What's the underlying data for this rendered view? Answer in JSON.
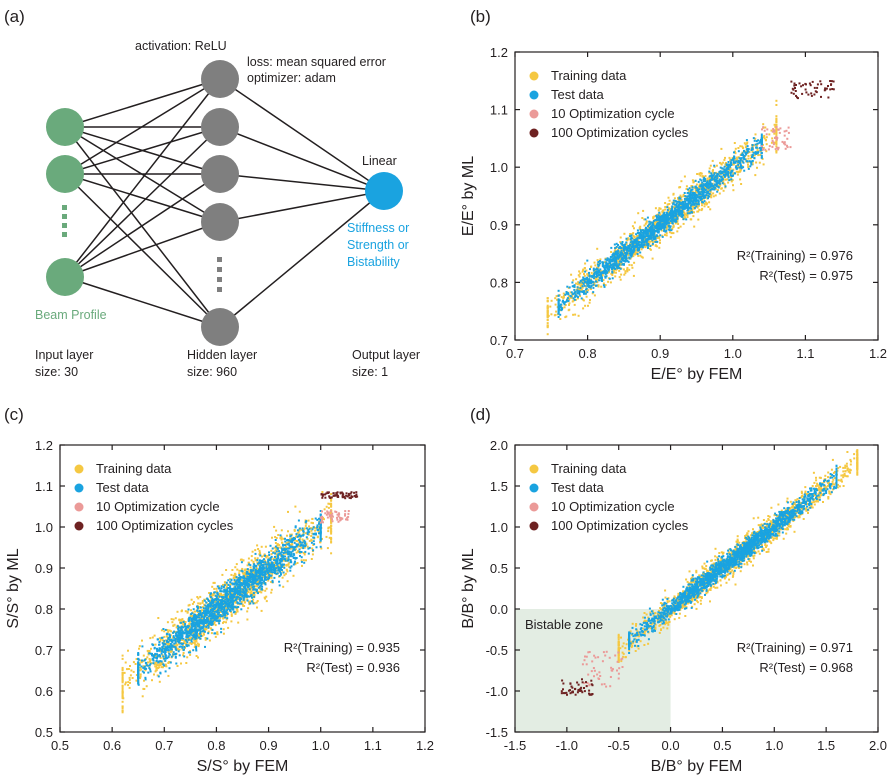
{
  "nn_panel": {
    "label": "(a)",
    "activation": "activation: ReLU",
    "loss": "loss: mean squared error",
    "optimizer": "optimizer: adam",
    "output_activation": "Linear",
    "input_caption": "Beam Profile",
    "output_caption_lines": [
      "Stiffness or",
      "Strength or",
      "Bistability"
    ],
    "input_layer": {
      "name": "Input layer",
      "size": "size: 30"
    },
    "hidden_layer": {
      "name": "Hidden layer",
      "size": "size: 960"
    },
    "output_layer": {
      "name": "Output layer",
      "size": "size: 1"
    },
    "colors": {
      "input": "#6aaa7c",
      "hidden": "#7f7f7f",
      "output": "#1aa3e0",
      "caption_green": "#6aaa7c",
      "caption_blue": "#1aa3e0"
    }
  },
  "legend_entries": [
    "Training data",
    "Test data",
    "10 Optimization cycle",
    "100 Optimization cycles"
  ],
  "series_colors": [
    "#f5c842",
    "#1aa3e0",
    "#eb9a98",
    "#6e2222"
  ],
  "chart_data": [
    {
      "type": "scatter",
      "panel": "(b)",
      "xlabel": "E/E° by FEM",
      "ylabel": "E/E° by ML",
      "xlim": [
        0.7,
        1.2
      ],
      "ylim": [
        0.7,
        1.2
      ],
      "xticks": [
        "0.7",
        "0.8",
        "0.9",
        "1.0",
        "1.1",
        "1.2"
      ],
      "yticks": [
        "0.7",
        "0.8",
        "0.9",
        "1.0",
        "1.1",
        "1.2"
      ],
      "r2_training": "R²(Training) = 0.976",
      "r2_test": "R²(Test) = 0.975",
      "legend": "top-left",
      "series": [
        {
          "name": "Training data",
          "x_range": [
            0.745,
            1.06
          ],
          "spread": 0.016,
          "count": 1400
        },
        {
          "name": "Test data",
          "x_range": [
            0.76,
            1.04
          ],
          "spread": 0.01,
          "count": 1600
        },
        {
          "name": "10 Optimization cycle",
          "x_range": [
            1.04,
            1.08
          ],
          "y_range": [
            1.03,
            1.07
          ],
          "count": 50
        },
        {
          "name": "100 Optimization cycles",
          "x_range": [
            1.08,
            1.14
          ],
          "y_range": [
            1.12,
            1.15
          ],
          "count": 50
        }
      ]
    },
    {
      "type": "scatter",
      "panel": "(c)",
      "xlabel": "S/S° by FEM",
      "ylabel": "S/S° by ML",
      "xlim": [
        0.5,
        1.2
      ],
      "ylim": [
        0.5,
        1.2
      ],
      "xticks": [
        "0.5",
        "0.6",
        "0.7",
        "0.8",
        "0.9",
        "1.0",
        "1.1",
        "1.2"
      ],
      "yticks": [
        "0.5",
        "0.6",
        "0.7",
        "0.8",
        "0.9",
        "1.0",
        "1.1",
        "1.2"
      ],
      "r2_training": "R²(Training) = 0.935",
      "r2_test": "R²(Test) = 0.936",
      "legend": "top-left",
      "series": [
        {
          "name": "Training data",
          "x_range": [
            0.62,
            1.02
          ],
          "spread": 0.03,
          "count": 1500
        },
        {
          "name": "Test data",
          "x_range": [
            0.65,
            1.0
          ],
          "spread": 0.02,
          "count": 1700
        },
        {
          "name": "10 Optimization cycle",
          "x_range": [
            1.0,
            1.06
          ],
          "y_range": [
            1.01,
            1.04
          ],
          "count": 50
        },
        {
          "name": "100 Optimization cycles",
          "x_range": [
            1.0,
            1.07
          ],
          "y_range": [
            1.07,
            1.085
          ],
          "count": 60
        }
      ]
    },
    {
      "type": "scatter",
      "panel": "(d)",
      "xlabel": "B/B° by FEM",
      "ylabel": "B/B° by ML",
      "xlim": [
        -1.5,
        2.0
      ],
      "ylim": [
        -1.5,
        2.0
      ],
      "xticks": [
        "-1.5",
        "-1.0",
        "-0.5",
        "0.0",
        "0.5",
        "1.0",
        "1.5",
        "2.0"
      ],
      "yticks": [
        "-1.5",
        "-1.0",
        "-0.5",
        "0.0",
        "0.5",
        "1.0",
        "1.5",
        "2.0"
      ],
      "r2_training": "R²(Training) = 0.971",
      "r2_test": "R²(Test) = 0.968",
      "legend": "top-left",
      "shaded_region": {
        "label": "Bistable zone",
        "x": [
          -1.5,
          0.0
        ],
        "y": [
          -1.5,
          0.0
        ],
        "color": "#e3ede3"
      },
      "series": [
        {
          "name": "Training data",
          "x_range": [
            -0.5,
            1.8
          ],
          "spread": 0.09,
          "count": 1600
        },
        {
          "name": "Test data",
          "x_range": [
            -0.4,
            1.6
          ],
          "spread": 0.06,
          "count": 1800
        },
        {
          "name": "10 Optimization cycle",
          "x_range": [
            -0.85,
            -0.45
          ],
          "y_range": [
            -0.95,
            -0.5
          ],
          "count": 50
        },
        {
          "name": "100 Optimization cycles",
          "x_range": [
            -1.05,
            -0.75
          ],
          "y_range": [
            -1.05,
            -0.85
          ],
          "count": 50
        }
      ]
    }
  ]
}
